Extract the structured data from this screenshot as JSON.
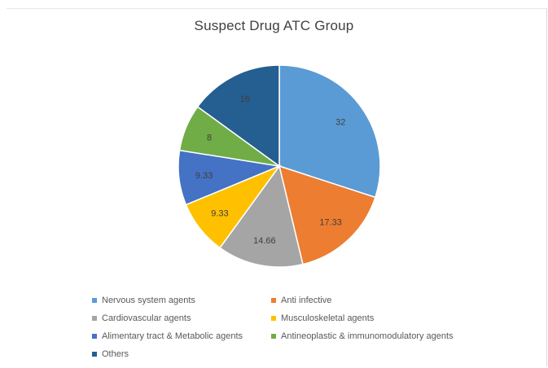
{
  "chart_data": {
    "type": "pie",
    "title": "Suspect Drug ATC  Group",
    "categories": [
      "Nervous system agents",
      "Anti infective",
      "Cardiovascular agents",
      "Musculoskeletal agents",
      "Alimentary tract & Metabolic agents",
      "Antineoplastic & immunomodulatory agents",
      "Others"
    ],
    "values": [
      32,
      17.33,
      14.66,
      9.33,
      9.33,
      8,
      16
    ],
    "labels": [
      "32",
      "17.33",
      "14.66",
      "9.33",
      "9.33",
      "8",
      "16"
    ],
    "colors": [
      "#5b9bd5",
      "#ed7d31",
      "#a5a5a5",
      "#ffc000",
      "#4472c4",
      "#70ad47",
      "#255e91"
    ],
    "legend_position": "bottom",
    "start_angle": "12 o'clock",
    "direction": "clockwise"
  }
}
